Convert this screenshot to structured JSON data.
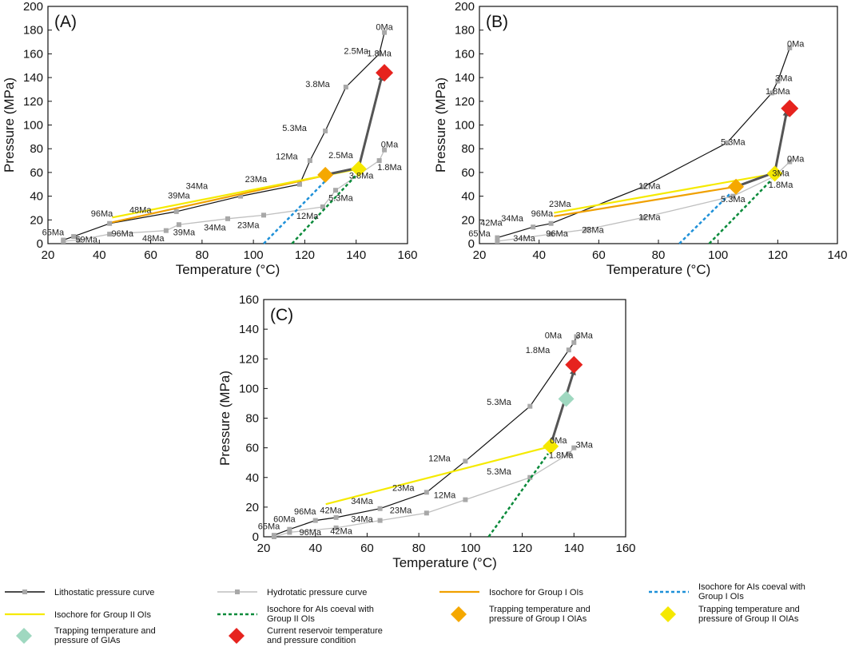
{
  "chart_data": [
    {
      "id": "A",
      "type": "line",
      "panel_label": "(A)",
      "xlabel": "Temperature (°C)",
      "ylabel": "Pressure (MPa)",
      "xlim": [
        20,
        160
      ],
      "ylim": [
        0,
        200
      ],
      "xticks": [
        20,
        40,
        60,
        80,
        100,
        120,
        140,
        160
      ],
      "yticks": [
        0,
        20,
        40,
        60,
        80,
        100,
        120,
        140,
        160,
        180,
        200
      ],
      "lithostatic": [
        [
          26,
          3
        ],
        [
          30,
          6
        ],
        [
          44,
          17
        ],
        [
          70,
          27
        ],
        [
          95,
          40
        ],
        [
          118,
          50
        ],
        [
          122,
          70
        ],
        [
          128,
          95
        ],
        [
          136,
          132
        ],
        [
          149,
          160
        ],
        [
          151,
          178
        ]
      ],
      "hydrostatic": [
        [
          26,
          2
        ],
        [
          32,
          3
        ],
        [
          44,
          8
        ],
        [
          66,
          11
        ],
        [
          71,
          16
        ],
        [
          90,
          21
        ],
        [
          104,
          24
        ],
        [
          127,
          31
        ],
        [
          132,
          45
        ],
        [
          149,
          70
        ],
        [
          151,
          79
        ]
      ],
      "isochore_group1": [
        [
          45,
          18
        ],
        [
          127,
          57
        ]
      ],
      "isochore_group2": [
        [
          45,
          22
        ],
        [
          141,
          63
        ]
      ],
      "isochore_ais_group1": [
        [
          104,
          0
        ],
        [
          129,
          55
        ]
      ],
      "isochore_ais_group2": [
        [
          115,
          0
        ],
        [
          141,
          60
        ]
      ],
      "trap_group1": [
        128,
        58
      ],
      "trap_group2": [
        141,
        63
      ],
      "current_reservoir": [
        151,
        144
      ],
      "arrow_path": [
        [
          128,
          58
        ],
        [
          141,
          64
        ],
        [
          150,
          141
        ]
      ],
      "labels": [
        {
          "text": "0Ma",
          "t": 151,
          "p": 180
        },
        {
          "text": "2.5Ma",
          "t": 140,
          "p": 160
        },
        {
          "text": "1.8Ma",
          "t": 149,
          "p": 158
        },
        {
          "text": "3.8Ma",
          "t": 125,
          "p": 132
        },
        {
          "text": "5.3Ma",
          "t": 116,
          "p": 95
        },
        {
          "text": "12Ma",
          "t": 113,
          "p": 71
        },
        {
          "text": "23Ma",
          "t": 101,
          "p": 52
        },
        {
          "text": "34Ma",
          "t": 78,
          "p": 46
        },
        {
          "text": "39Ma",
          "t": 71,
          "p": 38
        },
        {
          "text": "48Ma",
          "t": 56,
          "p": 26
        },
        {
          "text": "96Ma",
          "t": 41,
          "p": 23
        },
        {
          "text": "65Ma",
          "t": 22,
          "p": 7
        },
        {
          "text": "59Ma",
          "t": 35,
          "p": 1
        },
        {
          "text": "96Ma",
          "t": 49,
          "p": 6
        },
        {
          "text": "48Ma",
          "t": 61,
          "p": 2
        },
        {
          "text": "39Ma",
          "t": 73,
          "p": 7
        },
        {
          "text": "34Ma",
          "t": 85,
          "p": 11
        },
        {
          "text": "23Ma",
          "t": 98,
          "p": 13
        },
        {
          "text": "12Ma",
          "t": 121,
          "p": 21
        },
        {
          "text": "5.3Ma",
          "t": 134,
          "p": 36
        },
        {
          "text": "2.5Ma",
          "t": 134,
          "p": 72
        },
        {
          "text": "3.8Ma",
          "t": 142,
          "p": 55
        },
        {
          "text": "1.8Ma",
          "t": 153,
          "p": 62
        },
        {
          "text": "0Ma",
          "t": 153,
          "p": 81
        }
      ]
    },
    {
      "id": "B",
      "type": "line",
      "panel_label": "(B)",
      "xlabel": "Temperature (°C)",
      "ylabel": "Pressure (MPa)",
      "xlim": [
        20,
        140
      ],
      "ylim": [
        0,
        200
      ],
      "xticks": [
        20,
        40,
        60,
        80,
        100,
        120,
        140
      ],
      "yticks": [
        0,
        20,
        40,
        60,
        80,
        100,
        120,
        140,
        160,
        180,
        200
      ],
      "lithostatic": [
        [
          26,
          5
        ],
        [
          38,
          14
        ],
        [
          44,
          17
        ],
        [
          75,
          48
        ],
        [
          103,
          85
        ],
        [
          118,
          127
        ],
        [
          120,
          137
        ],
        [
          124,
          165
        ]
      ],
      "hydrostatic": [
        [
          26,
          2
        ],
        [
          44,
          8
        ],
        [
          56,
          12
        ],
        [
          75,
          22
        ],
        [
          105,
          40
        ],
        [
          119,
          57
        ],
        [
          124,
          69
        ]
      ],
      "isochore_group1": [
        [
          45,
          23
        ],
        [
          106,
          48
        ]
      ],
      "isochore_group2": [
        [
          45,
          26
        ],
        [
          119,
          59
        ]
      ],
      "isochore_ais_group1": [
        [
          87,
          0
        ],
        [
          104,
          42
        ]
      ],
      "isochore_ais_group2": [
        [
          97,
          0
        ],
        [
          118,
          54
        ]
      ],
      "trap_group1": [
        106,
        48
      ],
      "trap_group2": [
        119,
        59
      ],
      "current_reservoir": [
        124,
        114
      ],
      "arrow_path": [
        [
          106,
          48
        ],
        [
          119,
          60
        ],
        [
          123,
          111
        ]
      ],
      "labels": [
        {
          "text": "0Ma",
          "t": 126,
          "p": 166
        },
        {
          "text": "3Ma",
          "t": 122,
          "p": 137
        },
        {
          "text": "1.8Ma",
          "t": 120,
          "p": 126
        },
        {
          "text": "5.3Ma",
          "t": 105,
          "p": 83
        },
        {
          "text": "12Ma",
          "t": 77,
          "p": 46
        },
        {
          "text": "23Ma",
          "t": 47,
          "p": 31
        },
        {
          "text": "96Ma",
          "t": 41,
          "p": 23
        },
        {
          "text": "34Ma",
          "t": 31,
          "p": 19
        },
        {
          "text": "42Ma",
          "t": 24,
          "p": 15
        },
        {
          "text": "65Ma",
          "t": 20,
          "p": 6
        },
        {
          "text": "34Ma",
          "t": 35,
          "p": 2
        },
        {
          "text": "96Ma",
          "t": 46,
          "p": 6
        },
        {
          "text": "23Ma",
          "t": 58,
          "p": 9
        },
        {
          "text": "12Ma",
          "t": 77,
          "p": 20
        },
        {
          "text": "5.3Ma",
          "t": 105,
          "p": 35
        },
        {
          "text": "0Ma",
          "t": 126,
          "p": 69
        },
        {
          "text": "3Ma",
          "t": 121,
          "p": 57
        },
        {
          "text": "1.8Ma",
          "t": 121,
          "p": 47
        }
      ]
    },
    {
      "id": "C",
      "type": "line",
      "panel_label": "(C)",
      "xlabel": "Temperature (°C)",
      "ylabel": "Pressure (MPa)",
      "xlim": [
        20,
        160
      ],
      "ylim": [
        0,
        160
      ],
      "xticks": [
        20,
        40,
        60,
        80,
        100,
        120,
        140,
        160
      ],
      "yticks": [
        0,
        20,
        40,
        60,
        80,
        100,
        120,
        140,
        160
      ],
      "lithostatic": [
        [
          24,
          1
        ],
        [
          30,
          5
        ],
        [
          40,
          11
        ],
        [
          48,
          13
        ],
        [
          65,
          19
        ],
        [
          83,
          30
        ],
        [
          98,
          51
        ],
        [
          123,
          88
        ],
        [
          138,
          126
        ],
        [
          140,
          131
        ],
        [
          141,
          135
        ]
      ],
      "hydrostatic": [
        [
          24,
          0
        ],
        [
          30,
          3
        ],
        [
          48,
          6
        ],
        [
          65,
          11
        ],
        [
          83,
          16
        ],
        [
          98,
          25
        ],
        [
          123,
          40
        ],
        [
          138,
          56
        ],
        [
          140,
          60
        ]
      ],
      "isochore_group2": [
        [
          44,
          22
        ],
        [
          131,
          61
        ]
      ],
      "isochore_ais_group2": [
        [
          107,
          0
        ],
        [
          130,
          56
        ]
      ],
      "trap_group2": [
        131,
        61
      ],
      "trap_gias": [
        137,
        93
      ],
      "current_reservoir": [
        140,
        116
      ],
      "arrow_path": [
        [
          131,
          62
        ],
        [
          140,
          112
        ]
      ],
      "labels": [
        {
          "text": "0Ma",
          "t": 132,
          "p": 134
        },
        {
          "text": "3Ma",
          "t": 144,
          "p": 134
        },
        {
          "text": "1.8Ma",
          "t": 126,
          "p": 124
        },
        {
          "text": "5.3Ma",
          "t": 111,
          "p": 89
        },
        {
          "text": "12Ma",
          "t": 88,
          "p": 51
        },
        {
          "text": "23Ma",
          "t": 74,
          "p": 31
        },
        {
          "text": "34Ma",
          "t": 58,
          "p": 22
        },
        {
          "text": "42Ma",
          "t": 46,
          "p": 16
        },
        {
          "text": "96Ma",
          "t": 36,
          "p": 15
        },
        {
          "text": "60Ma",
          "t": 28,
          "p": 10
        },
        {
          "text": "65Ma",
          "t": 22,
          "p": 5
        },
        {
          "text": "96Ma",
          "t": 38,
          "p": 1
        },
        {
          "text": "42Ma",
          "t": 50,
          "p": 2
        },
        {
          "text": "34Ma",
          "t": 58,
          "p": 10
        },
        {
          "text": "23Ma",
          "t": 73,
          "p": 16
        },
        {
          "text": "12Ma",
          "t": 90,
          "p": 26
        },
        {
          "text": "5.3Ma",
          "t": 111,
          "p": 42
        },
        {
          "text": "0Ma",
          "t": 134,
          "p": 63
        },
        {
          "text": "3Ma",
          "t": 144,
          "p": 60
        },
        {
          "text": "1.8Ma",
          "t": 135,
          "p": 53
        }
      ]
    }
  ],
  "legend": [
    {
      "key": "lithostatic",
      "text": "Lithostatic pressure curve"
    },
    {
      "key": "hydrostatic",
      "text": "Hydrotatic pressure curve"
    },
    {
      "key": "isochore_group1",
      "text": "Isochore for Group I OIs"
    },
    {
      "key": "isochore_ais_group1",
      "text": "Isochore for AIs coeval with Group I OIs"
    },
    {
      "key": "isochore_group2",
      "text": "Isochore for Group II OIs"
    },
    {
      "key": "isochore_ais_group2",
      "text": "Isochore for AIs coeval with Group II OIs"
    },
    {
      "key": "trap_group1",
      "text": "Trapping temperature and pressure of Group I OIAs"
    },
    {
      "key": "trap_group2",
      "text": "Trapping temperature and pressure of Group II OIAs"
    },
    {
      "key": "trap_gias",
      "text": "Trapping temperature and pressure of GIAs"
    },
    {
      "key": "current_reservoir",
      "text": "Current reservoir temperature and pressure condition"
    }
  ],
  "colors": {
    "lithostatic": "#111111",
    "hydrostatic": "#bfbfbf",
    "isochore_group1": "#f0a000",
    "isochore_group2": "#f5ea00",
    "isochore_ais_group1": "#1e90d8",
    "isochore_ais_group2": "#0a8a3a",
    "trap_group1": "#f5a800",
    "trap_group2": "#f5e800",
    "trap_gias": "#9fd8c0",
    "current_reservoir": "#e6231e",
    "arrow": "#555555",
    "marker": "#a8a8a8"
  }
}
